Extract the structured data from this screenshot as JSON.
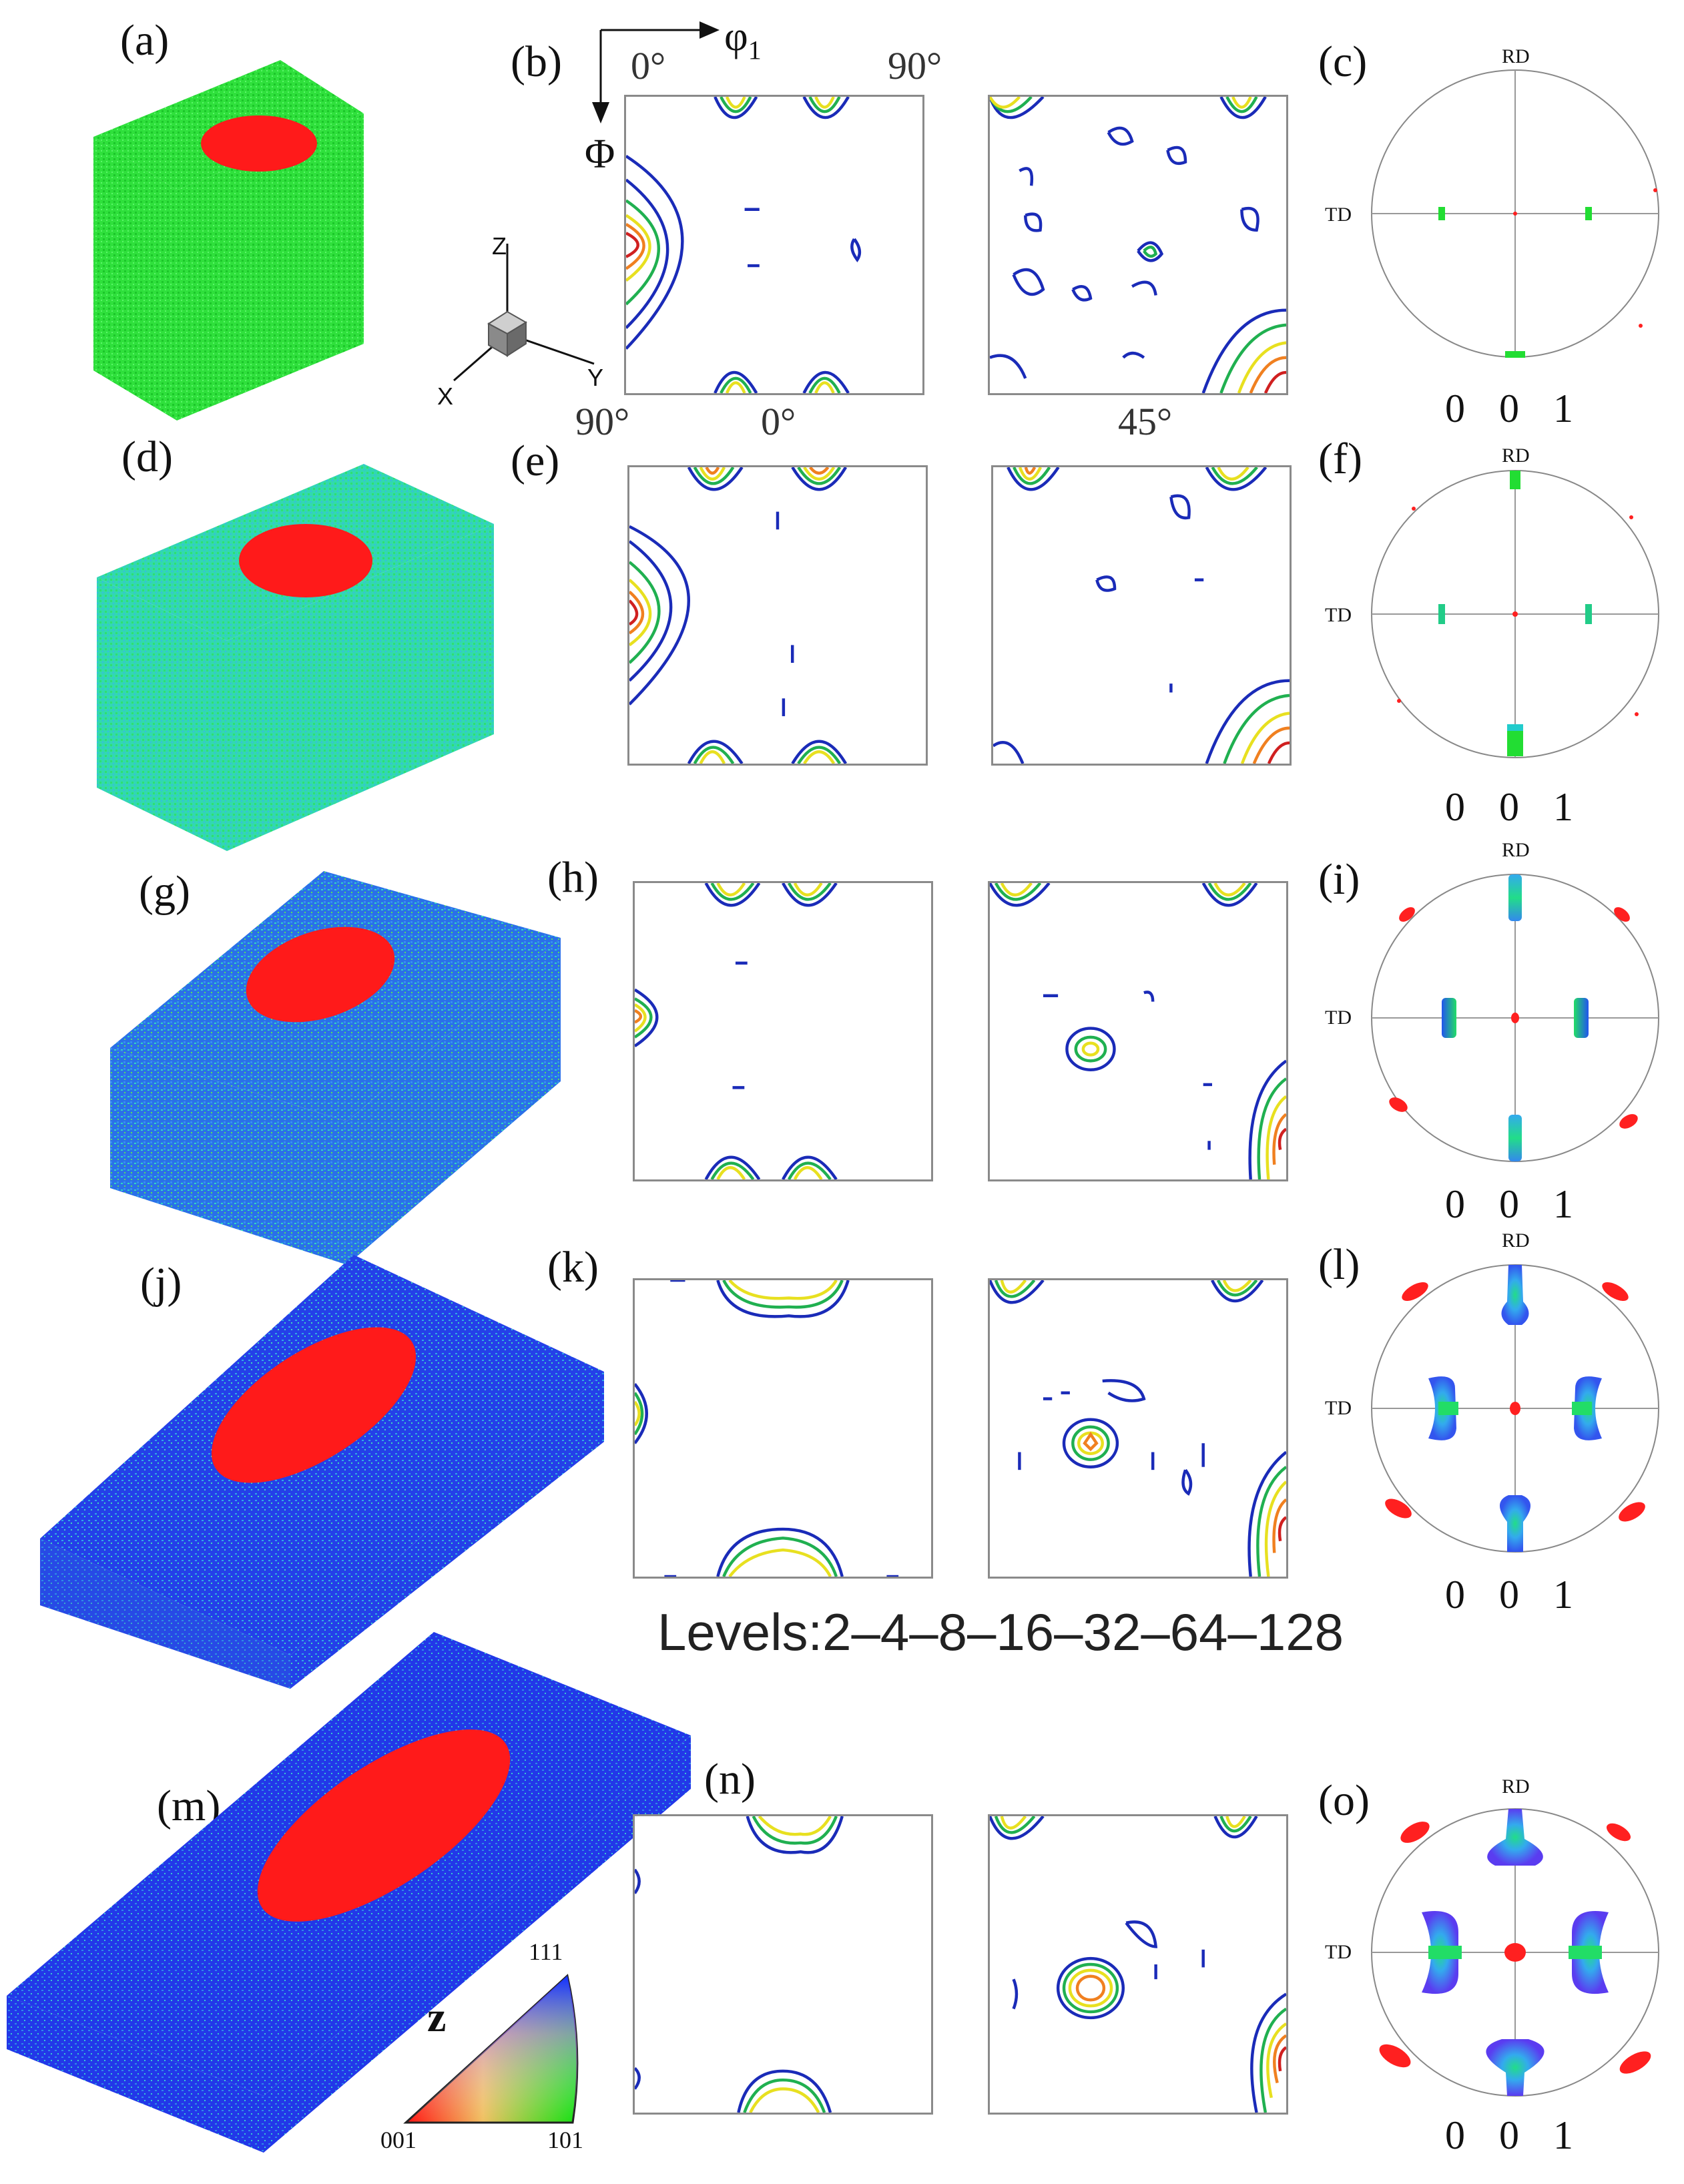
{
  "panel_labels": {
    "a": "(a)",
    "b": "(b)",
    "c": "(c)",
    "d": "(d)",
    "e": "(e)",
    "f": "(f)",
    "g": "(g)",
    "h": "(h)",
    "i": "(i)",
    "j": "(j)",
    "k": "(k)",
    "l": "(l)",
    "m": "(m)",
    "n": "(n)",
    "o": "(o)"
  },
  "odf_axes": {
    "phi1_symbol": "φ",
    "phi1_subscript": "1",
    "Phi_symbol": "Φ",
    "top_left": "0°",
    "top_right": "90°",
    "bottom_left": "90°",
    "section_1": "0°",
    "section_2": "45°"
  },
  "triad": {
    "z": "Z",
    "x": "X",
    "y": "Y"
  },
  "pole_figure": {
    "rd": "RD",
    "td": "TD",
    "caption": "0 0 1"
  },
  "levels_text": "Levels:2–4–8–16–32–64–128",
  "ipf_legend": {
    "axis": "z",
    "corner_001": "001",
    "corner_101": "101",
    "corner_111": "111"
  },
  "colors": {
    "red": "#ff1a1a",
    "green": "#22ee33",
    "teal": "#2fd6b8",
    "blue": "#2050ee",
    "contour_blue": "#1a2bb8",
    "contour_green": "#20b050",
    "contour_yellow": "#e8e020",
    "contour_orange": "#f08020",
    "contour_red": "#d02020"
  }
}
